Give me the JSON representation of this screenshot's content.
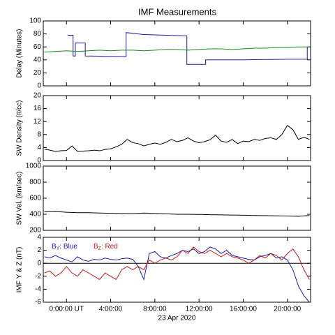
{
  "chart_data": [
    {
      "type": "line",
      "title": "IMF Measurements",
      "ylabel": "Delay (Minutes)",
      "xlim": [
        -2.1,
        22.1
      ],
      "xticks": [
        0,
        4,
        8,
        12,
        16,
        20
      ],
      "ylim": [
        0,
        100
      ],
      "yticks": [
        0,
        20,
        40,
        60,
        80,
        100
      ],
      "x": [
        -2,
        -1,
        0,
        1,
        2,
        3,
        4,
        5,
        6,
        7,
        8,
        9,
        10,
        11,
        12,
        13,
        14,
        15,
        16,
        17,
        18,
        19,
        20,
        21,
        22
      ],
      "series": [
        {
          "color": "#1a1a9c",
          "x": [
            0.1,
            0.6,
            0.6,
            0.8,
            0.8,
            1.7,
            1.7,
            5.4,
            5.4,
            7,
            9,
            10.9,
            10.9,
            12.6,
            12.6,
            16,
            20,
            21.8,
            21.8,
            22.1
          ],
          "values": [
            78,
            78,
            46,
            46,
            66,
            66,
            46,
            45,
            82,
            79,
            78,
            77,
            33,
            33,
            40,
            40,
            41,
            41,
            60,
            60
          ]
        },
        {
          "color": "#1a8a1a",
          "values": [
            52,
            53,
            54,
            53,
            54,
            55,
            54,
            55,
            55,
            54,
            55,
            56,
            56,
            55,
            56,
            57,
            57,
            56,
            57,
            58,
            58,
            59,
            59,
            60,
            60
          ]
        }
      ]
    },
    {
      "type": "line",
      "ylabel": "SW Density (#/cc)",
      "xlim": [
        -2.1,
        22.1
      ],
      "xticks": [
        0,
        4,
        8,
        12,
        16,
        20
      ],
      "ylim": [
        0,
        20
      ],
      "yticks": [
        0,
        4,
        8,
        12,
        16,
        20
      ],
      "x": [
        -2,
        -1.5,
        -1,
        -0.5,
        0,
        0.5,
        1,
        1.5,
        2,
        2.5,
        3,
        3.5,
        4,
        4.5,
        5,
        5.5,
        6,
        6.5,
        7,
        7.5,
        8,
        8.5,
        9,
        9.5,
        10,
        10.5,
        11,
        11.5,
        12,
        12.5,
        13,
        13.5,
        14,
        14.5,
        15,
        15.5,
        16,
        16.5,
        17,
        17.5,
        18,
        18.5,
        19,
        19.5,
        20,
        20.5,
        21,
        21.5,
        22
      ],
      "series": [
        {
          "color": "#000000",
          "values": [
            3.5,
            3.2,
            2.8,
            3.0,
            3.1,
            4.5,
            2.8,
            2.9,
            3.0,
            3.2,
            3.0,
            3.4,
            3.6,
            4.2,
            5.0,
            6.5,
            5.5,
            5.2,
            4.5,
            5.0,
            5.4,
            5.0,
            5.6,
            6.5,
            5.8,
            6.2,
            7.0,
            6.0,
            5.5,
            5.8,
            6.4,
            7.8,
            6.0,
            5.6,
            6.5,
            5.2,
            6.0,
            5.8,
            6.5,
            6.2,
            6.8,
            7.0,
            6.5,
            8.0,
            10.8,
            9.5,
            6.5,
            7.2,
            6.5
          ]
        }
      ]
    },
    {
      "type": "line",
      "ylabel": "SW Vel. (km/sec)",
      "xlim": [
        -2.1,
        22.1
      ],
      "xticks": [
        0,
        4,
        8,
        12,
        16,
        20
      ],
      "ylim": [
        200,
        1000
      ],
      "yticks": [
        200,
        400,
        600,
        800,
        1000
      ],
      "x": [
        -2,
        -1,
        0,
        1,
        2,
        3,
        4,
        5,
        6,
        7,
        8,
        9,
        10,
        11,
        12,
        13,
        14,
        15,
        16,
        17,
        18,
        19,
        20,
        21,
        22
      ],
      "series": [
        {
          "color": "#000000",
          "values": [
            430,
            435,
            425,
            420,
            420,
            415,
            412,
            410,
            408,
            415,
            410,
            405,
            400,
            400,
            398,
            395,
            392,
            390,
            388,
            385,
            383,
            380,
            378,
            375,
            385
          ]
        }
      ]
    },
    {
      "type": "line",
      "ylabel": "IMF Y & Z (nT)",
      "xlabel": "23 Apr 2020",
      "legend": "upper left",
      "zero_line": true,
      "xlim": [
        -2.1,
        22.1
      ],
      "xticks": [
        {
          "value": 0,
          "label": "0:00:00 UT"
        },
        {
          "value": 4,
          "label": "4:00:00"
        },
        {
          "value": 8,
          "label": "8:00:00"
        },
        {
          "value": 12,
          "label": "12:00:00"
        },
        {
          "value": 16,
          "label": "16:00:00"
        },
        {
          "value": 20,
          "label": "20:00:00"
        }
      ],
      "ylim": [
        -6,
        4
      ],
      "yticks": [
        -6,
        -4,
        -2,
        0,
        2,
        4
      ],
      "x": [
        -2,
        -1.5,
        -1,
        -0.5,
        0,
        0.5,
        1,
        1.5,
        2,
        2.5,
        3,
        3.5,
        4,
        4.5,
        5,
        5.5,
        6,
        6.5,
        7,
        7.5,
        8,
        8.5,
        9,
        9.5,
        10,
        10.5,
        11,
        11.5,
        12,
        12.5,
        13,
        13.5,
        14,
        14.5,
        15,
        15.5,
        16,
        16.5,
        17,
        17.5,
        18,
        18.5,
        19,
        19.5,
        20,
        20.5,
        21,
        21.5,
        22
      ],
      "series": [
        {
          "name": "BY: Blue",
          "color": "#1a1ab4",
          "values": [
            1.0,
            0.8,
            1.2,
            0.8,
            0.5,
            0.2,
            1.0,
            0.5,
            0.3,
            0.6,
            0.5,
            0.8,
            0.6,
            0.5,
            0.7,
            0.8,
            0.6,
            -0.5,
            -2.5,
            1.5,
            1.8,
            1.0,
            0.8,
            1.2,
            1.5,
            2.0,
            1.8,
            2.2,
            1.5,
            1.8,
            2.5,
            2.2,
            1.5,
            2.0,
            1.2,
            1.0,
            0.8,
            0.6,
            0.5,
            1.0,
            1.2,
            1.5,
            0.8,
            1.0,
            0.5,
            -1.0,
            -3.5,
            -5.0,
            -6.0
          ]
        },
        {
          "name": "BZ: Red",
          "color": "#c01a1a",
          "values": [
            -1.5,
            -1.2,
            -2.0,
            -1.5,
            -0.5,
            -1.5,
            -2.0,
            -1.0,
            -1.5,
            -2.0,
            -2.5,
            -1.5,
            -2.0,
            -2.5,
            -1.0,
            -0.5,
            -1.0,
            -0.5,
            -1.0,
            0.5,
            0.0,
            0.5,
            0.8,
            0.5,
            1.0,
            2.0,
            1.5,
            2.5,
            1.8,
            1.5,
            2.0,
            1.5,
            1.0,
            1.5,
            1.0,
            0.8,
            0.5,
            0.0,
            0.5,
            1.2,
            0.8,
            1.5,
            1.2,
            0.5,
            1.5,
            2.2,
            1.0,
            -1.0,
            -2.5
          ]
        }
      ]
    }
  ]
}
